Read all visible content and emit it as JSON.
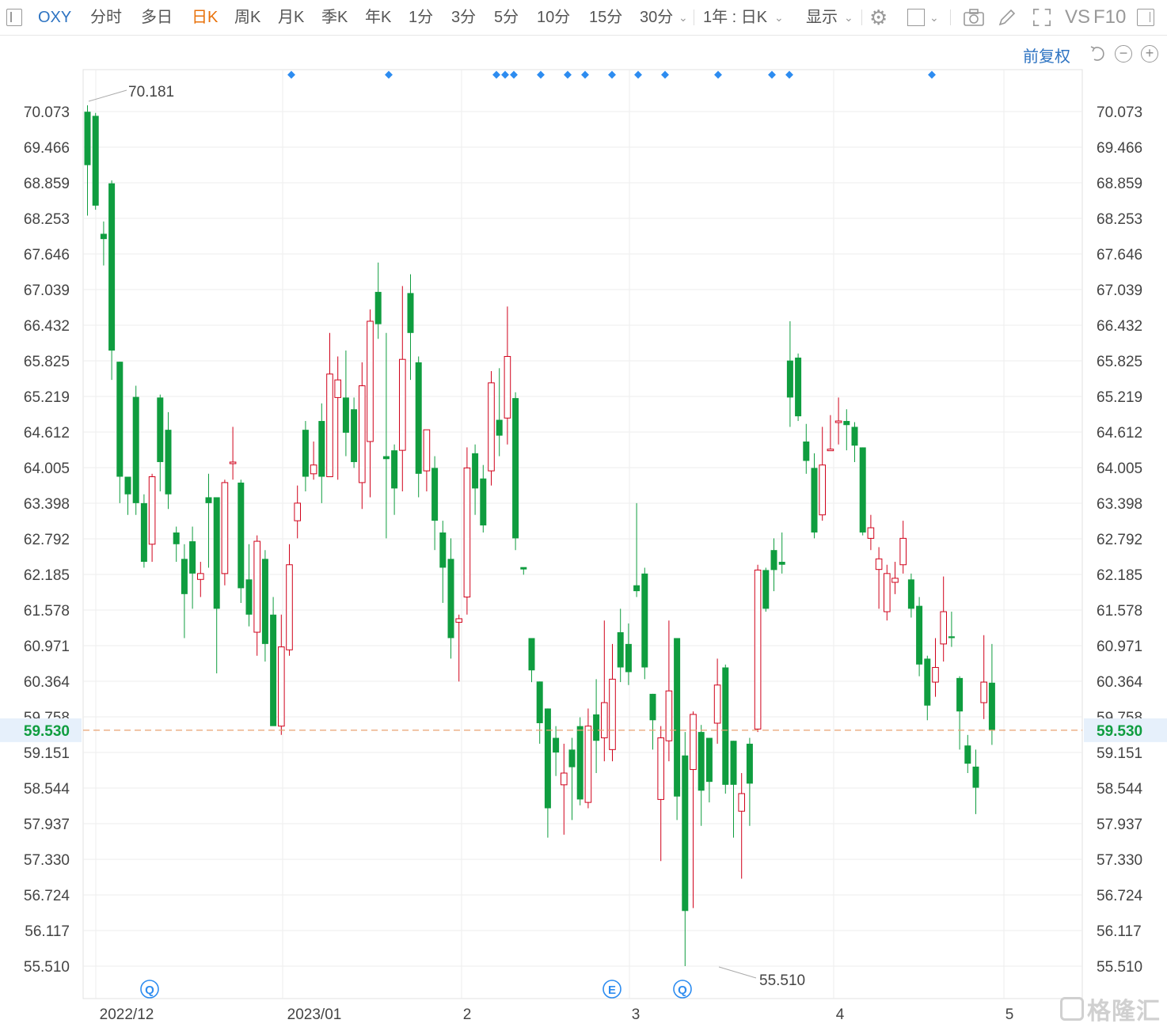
{
  "toolbar": {
    "symbol": "OXY",
    "tabs": [
      "分时",
      "多日",
      "日K",
      "周K",
      "月K",
      "季K",
      "年K",
      "1分",
      "3分",
      "5分",
      "10分",
      "15分",
      "30分"
    ],
    "active_tab": "日K",
    "period_select": "1年 : 日K",
    "display_label": "显示",
    "vs_label": "VS",
    "f10_label": "F10"
  },
  "subbar": {
    "adjust_label": "前复权"
  },
  "colors": {
    "up": "#d0021b",
    "down": "#0f9d3f",
    "current_line": "#e8a070",
    "price_tag": "#0f9d3f",
    "axis_text": "#333",
    "grid": "#eeeeee",
    "event_marker": "#2d8cf0",
    "link": "#2d73c2"
  },
  "watermark": "格隆汇",
  "chart_data": {
    "type": "candlestick",
    "symbol": "OXY",
    "period": "日K",
    "y_ticks": [
      70.073,
      69.466,
      68.859,
      68.253,
      67.646,
      67.039,
      66.432,
      65.825,
      65.219,
      64.612,
      64.005,
      63.398,
      62.792,
      62.185,
      61.578,
      60.971,
      60.364,
      59.758,
      59.151,
      58.544,
      57.937,
      57.33,
      56.724,
      56.117,
      55.51
    ],
    "ylim": [
      55.51,
      70.18
    ],
    "x_labels": [
      "2022/12",
      "2023/01",
      "2",
      "3",
      "4",
      "5"
    ],
    "current_price": "59.530",
    "high_label": "70.181",
    "low_label": "55.510",
    "event_badges": [
      "Q",
      "E",
      "Q"
    ],
    "candles": [
      [
        70.07,
        69.16,
        70.18,
        68.3
      ],
      [
        70.0,
        68.47,
        70.05,
        68.4
      ],
      [
        67.99,
        67.9,
        68.2,
        67.45
      ],
      [
        68.85,
        66.0,
        68.9,
        65.5
      ],
      [
        65.81,
        63.85,
        65.81,
        63.4
      ],
      [
        63.85,
        63.55,
        63.85,
        63.2
      ],
      [
        65.21,
        63.4,
        65.4,
        63.2
      ],
      [
        63.4,
        62.4,
        63.55,
        62.3
      ],
      [
        62.7,
        63.85,
        63.9,
        62.4
      ],
      [
        65.2,
        64.1,
        65.25,
        63.6
      ],
      [
        64.65,
        63.55,
        64.95,
        63.3
      ],
      [
        62.9,
        62.7,
        63.0,
        62.4
      ],
      [
        62.45,
        61.85,
        62.7,
        61.1
      ],
      [
        62.75,
        62.2,
        63.0,
        61.6
      ],
      [
        62.1,
        62.2,
        62.4,
        61.8
      ],
      [
        63.5,
        63.4,
        63.9,
        62.3
      ],
      [
        63.5,
        61.6,
        63.5,
        60.5
      ],
      [
        62.2,
        63.75,
        63.8,
        62.0
      ],
      [
        64.1,
        64.1,
        64.7,
        63.8
      ],
      [
        63.75,
        61.95,
        63.8,
        61.7
      ],
      [
        62.1,
        61.5,
        62.7,
        61.3
      ],
      [
        61.2,
        62.75,
        62.85,
        60.8
      ],
      [
        62.45,
        61.0,
        62.6,
        60.7
      ],
      [
        61.5,
        59.6,
        61.8,
        59.7
      ],
      [
        59.6,
        60.95,
        61.5,
        59.45
      ],
      [
        60.9,
        62.35,
        62.7,
        60.8
      ],
      [
        63.1,
        63.4,
        63.7,
        62.8
      ],
      [
        64.65,
        63.85,
        64.8,
        63.6
      ],
      [
        63.9,
        64.05,
        64.45,
        63.8
      ],
      [
        64.8,
        63.85,
        65.1,
        63.4
      ],
      [
        63.85,
        65.6,
        66.3,
        64.0
      ],
      [
        65.2,
        65.5,
        65.9,
        63.8
      ],
      [
        65.2,
        64.6,
        66.0,
        64.2
      ],
      [
        65.0,
        64.1,
        65.2,
        64.0
      ],
      [
        63.75,
        65.4,
        65.8,
        63.3
      ],
      [
        64.45,
        66.5,
        66.7,
        63.5
      ],
      [
        67.0,
        66.45,
        67.5,
        66.2
      ],
      [
        64.2,
        64.15,
        66.3,
        62.8
      ],
      [
        64.3,
        63.65,
        64.4,
        63.2
      ],
      [
        64.3,
        65.85,
        67.1,
        63.6
      ],
      [
        66.98,
        66.3,
        67.3,
        65.5
      ],
      [
        65.8,
        63.9,
        65.9,
        63.5
      ],
      [
        63.95,
        64.65,
        64.65,
        63.6
      ],
      [
        64.0,
        63.1,
        64.2,
        62.6
      ],
      [
        62.9,
        62.3,
        63.1,
        61.7
      ],
      [
        62.45,
        61.1,
        62.8,
        60.75
      ],
      [
        61.37,
        61.43,
        61.5,
        60.36
      ],
      [
        61.8,
        64.0,
        64.35,
        61.5
      ],
      [
        64.25,
        63.65,
        64.4,
        63.2
      ],
      [
        63.82,
        63.02,
        64.05,
        62.9
      ],
      [
        63.95,
        65.45,
        65.65,
        63.7
      ],
      [
        64.82,
        64.55,
        65.7,
        64.2
      ],
      [
        64.85,
        65.9,
        66.75,
        64.4
      ],
      [
        65.19,
        62.8,
        65.29,
        62.6
      ],
      [
        62.31,
        62.27,
        62.3,
        62.18
      ],
      [
        61.1,
        60.55,
        61.1,
        60.35
      ],
      [
        60.36,
        59.65,
        60.36,
        59.3
      ],
      [
        59.9,
        58.2,
        59.9,
        57.7
      ],
      [
        59.4,
        59.15,
        59.6,
        58.75
      ],
      [
        58.6,
        58.8,
        59.3,
        57.75
      ],
      [
        59.2,
        58.9,
        59.4,
        58.0
      ],
      [
        59.6,
        58.35,
        59.75,
        58.25
      ],
      [
        58.3,
        59.6,
        59.9,
        58.2
      ],
      [
        59.8,
        59.35,
        60.4,
        58.8
      ],
      [
        59.4,
        60.0,
        61.4,
        59.0
      ],
      [
        59.2,
        60.4,
        61.0,
        59.0
      ],
      [
        61.2,
        60.6,
        61.6,
        60.35
      ],
      [
        61.0,
        60.52,
        61.35,
        60.3
      ],
      [
        62.0,
        61.9,
        63.4,
        61.8
      ],
      [
        62.2,
        60.6,
        62.3,
        60.4
      ],
      [
        60.15,
        59.7,
        60.15,
        59.2
      ],
      [
        58.35,
        59.4,
        59.6,
        57.3
      ],
      [
        59.35,
        60.2,
        61.4,
        59.0
      ],
      [
        61.1,
        58.4,
        61.1,
        58.0
      ],
      [
        59.1,
        56.45,
        59.5,
        55.51
      ],
      [
        58.86,
        59.8,
        59.85,
        56.5
      ],
      [
        59.5,
        58.5,
        59.62,
        57.9
      ],
      [
        59.4,
        58.65,
        59.4,
        58.3
      ],
      [
        59.65,
        60.3,
        60.75,
        59.3
      ],
      [
        60.6,
        58.6,
        60.65,
        58.45
      ],
      [
        59.35,
        58.6,
        59.35,
        57.7
      ],
      [
        58.15,
        58.45,
        58.8,
        57.0
      ],
      [
        59.3,
        58.62,
        59.4,
        57.9
      ],
      [
        59.55,
        62.26,
        62.35,
        59.5
      ],
      [
        62.26,
        61.6,
        62.3,
        61.55
      ],
      [
        62.6,
        62.26,
        62.8,
        61.9
      ],
      [
        62.4,
        62.35,
        62.9,
        62.2
      ],
      [
        65.83,
        65.2,
        66.5,
        64.7
      ],
      [
        65.88,
        64.88,
        65.95,
        64.8
      ],
      [
        64.45,
        64.12,
        64.75,
        63.9
      ],
      [
        64.0,
        62.9,
        64.25,
        62.8
      ],
      [
        63.2,
        64.05,
        64.7,
        63.1
      ],
      [
        64.32,
        64.32,
        64.9,
        64.3
      ],
      [
        64.8,
        64.8,
        65.2,
        64.4
      ],
      [
        64.8,
        64.73,
        65.0,
        64.3
      ],
      [
        64.7,
        64.38,
        64.78,
        64.1
      ],
      [
        64.35,
        62.9,
        64.35,
        62.85
      ],
      [
        62.8,
        62.98,
        63.2,
        62.6
      ],
      [
        62.27,
        62.45,
        62.65,
        61.6
      ],
      [
        61.55,
        62.2,
        62.35,
        61.4
      ],
      [
        62.05,
        62.12,
        62.4,
        61.85
      ],
      [
        62.35,
        62.8,
        63.1,
        62.2
      ],
      [
        62.1,
        61.6,
        62.2,
        61.45
      ],
      [
        61.65,
        60.65,
        61.8,
        60.45
      ],
      [
        60.75,
        59.95,
        60.8,
        59.7
      ],
      [
        60.35,
        60.6,
        61.1,
        60.1
      ],
      [
        61.0,
        61.55,
        62.15,
        60.7
      ],
      [
        61.13,
        61.1,
        61.55,
        60.95
      ],
      [
        60.42,
        59.85,
        60.45,
        59.2
      ],
      [
        59.27,
        58.96,
        59.45,
        58.8
      ],
      [
        58.91,
        58.55,
        59.2,
        58.1
      ],
      [
        60.0,
        60.35,
        61.15,
        59.72
      ],
      [
        60.34,
        59.53,
        61.0,
        59.28
      ]
    ]
  }
}
